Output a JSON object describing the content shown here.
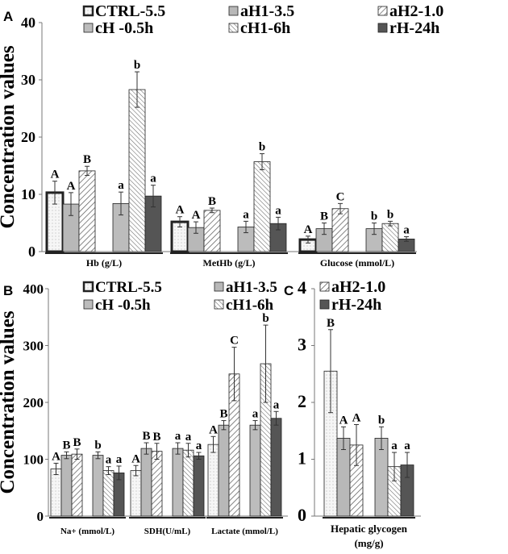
{
  "chart_data": [
    {
      "panel": "A",
      "type": "bar",
      "ylabel": "Concentration values",
      "ylim": [
        0,
        40
      ],
      "yticks": [
        0,
        10,
        20,
        30,
        40
      ],
      "series_names": [
        "CTRL-5.5",
        "aH1-3.5",
        "aH2-1.0",
        "cH -0.5h",
        "cH1-6h",
        "rH-24h"
      ],
      "categories": [
        "Hb (g/L)",
        "MetHb (g/L)",
        "Glucose (mmol/L)"
      ],
      "values": [
        [
          10.3,
          8.3,
          14.1,
          8.4,
          28.3,
          9.7
        ],
        [
          5.2,
          4.2,
          7.2,
          4.3,
          15.7,
          4.9
        ],
        [
          2.1,
          4.0,
          7.5,
          4.0,
          4.9,
          2.2
        ]
      ],
      "errors": [
        [
          2.0,
          2.0,
          0.8,
          2.0,
          3.1,
          1.9
        ],
        [
          0.9,
          1.0,
          0.4,
          1.0,
          1.4,
          1.1
        ],
        [
          0.6,
          1.0,
          0.9,
          1.0,
          0.4,
          0.4
        ]
      ],
      "letters": [
        [
          "A",
          "A",
          "B",
          "a",
          "b",
          "a"
        ],
        [
          "A",
          "A",
          "B",
          "a",
          "b",
          "a"
        ],
        [
          "A",
          "B",
          "C",
          "b",
          "b",
          "a"
        ]
      ]
    },
    {
      "panel": "B",
      "type": "bar",
      "ylabel": "Concentration values",
      "ylim": [
        0,
        400
      ],
      "yticks": [
        0,
        100,
        200,
        300,
        400
      ],
      "series_names": [
        "CTRL-5.5",
        "aH1-3.5",
        "cH -0.5h",
        "cH1-6h"
      ],
      "categories": [
        "Na+ (mmol/L)",
        "SDH(U/mL)",
        "Lactate (mmol/L)"
      ],
      "values": [
        [
          83,
          107,
          109,
          107,
          80,
          76
        ],
        [
          80,
          119,
          114,
          119,
          116,
          106
        ],
        [
          126,
          160,
          250,
          160,
          268,
          172
        ]
      ],
      "errors": [
        [
          10,
          6,
          9,
          6,
          7,
          12
        ],
        [
          9,
          10,
          14,
          10,
          12,
          6
        ],
        [
          14,
          8,
          47,
          8,
          68,
          12
        ]
      ],
      "letters": [
        [
          "A",
          "B",
          "B",
          "b",
          "a",
          "a"
        ],
        [
          "A",
          "B",
          "B",
          "a",
          "a",
          "a"
        ],
        [
          "A",
          "B",
          "C",
          "a",
          "b",
          "a"
        ]
      ]
    },
    {
      "panel": "C",
      "type": "bar",
      "ylabel": "",
      "ylim": [
        0,
        4
      ],
      "yticks": [
        0,
        1,
        2,
        3,
        4
      ],
      "series_names": [
        "aH2-1.0",
        "rH-24h"
      ],
      "categories": [
        "Hepatic glycogen (mg/g)"
      ],
      "values": [
        [
          2.55,
          1.37,
          1.25,
          1.37,
          0.87,
          0.9
        ]
      ],
      "errors": [
        [
          0.73,
          0.2,
          0.36,
          0.2,
          0.25,
          0.22
        ]
      ],
      "letters": [
        [
          "B",
          "A",
          "A",
          "b",
          "a",
          "a"
        ]
      ]
    }
  ],
  "colors": {
    "ctrl": "#f4f4f4",
    "aH1": "#b8b8b8",
    "cH": "#bcbcbc",
    "rH": "#555555",
    "hatch": "#555555"
  }
}
